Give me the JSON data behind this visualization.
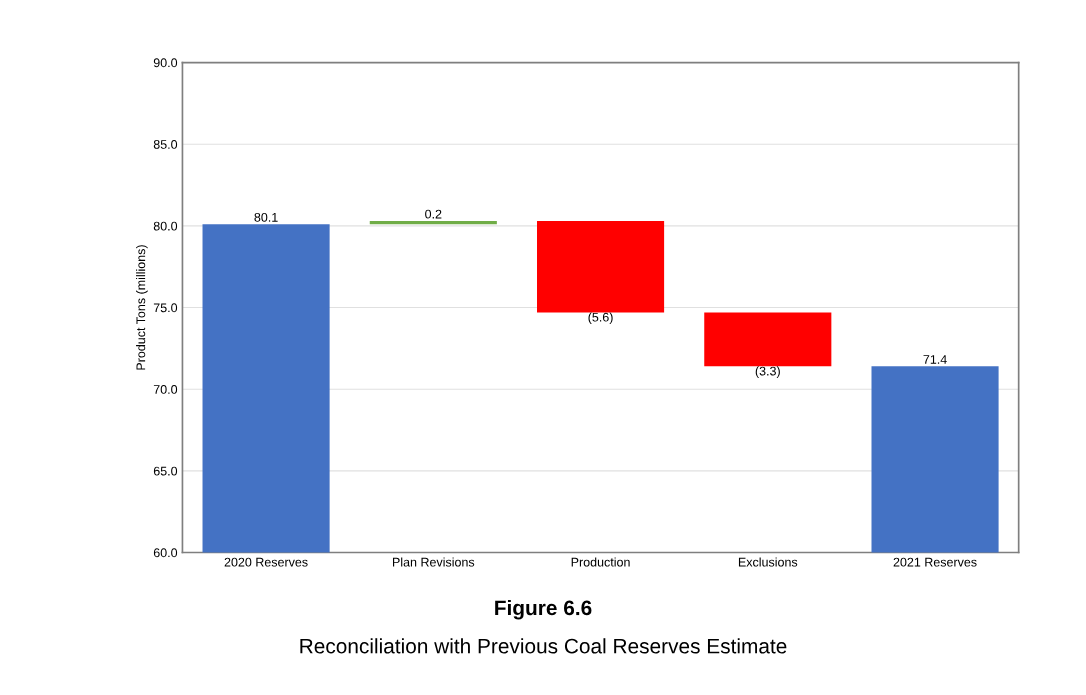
{
  "chart_data": {
    "type": "bar",
    "title": "Figure 6.6",
    "subtitle": "Reconciliation with Previous Coal Reserves Estimate",
    "ylabel": "Product Tons (millions)",
    "categories": [
      "2020 Reserves",
      "Plan Revisions",
      "Production",
      "Exclusions",
      "2021 Reserves"
    ],
    "values": [
      80.1,
      0.2,
      -5.6,
      -3.3,
      71.4
    ],
    "base": [
      null,
      80.1,
      80.3,
      74.7,
      null
    ],
    "colors": [
      "#4472c4",
      "#70ad47",
      "#ff0000",
      "#ff0000",
      "#4472c4"
    ],
    "value_labels": [
      "80.1",
      "0.2",
      "(5.6)",
      "(3.3)",
      "71.4"
    ],
    "ylim": [
      60,
      90
    ],
    "yticks": [
      {
        "value": 60,
        "label": "60.0"
      },
      {
        "value": 65,
        "label": "65.0"
      },
      {
        "value": 70,
        "label": "70.0"
      },
      {
        "value": 75,
        "label": "75.0"
      },
      {
        "value": 80,
        "label": "80.0"
      },
      {
        "value": 85,
        "label": "85.0"
      },
      {
        "value": 90,
        "label": "90.0"
      }
    ],
    "grid": "y"
  }
}
